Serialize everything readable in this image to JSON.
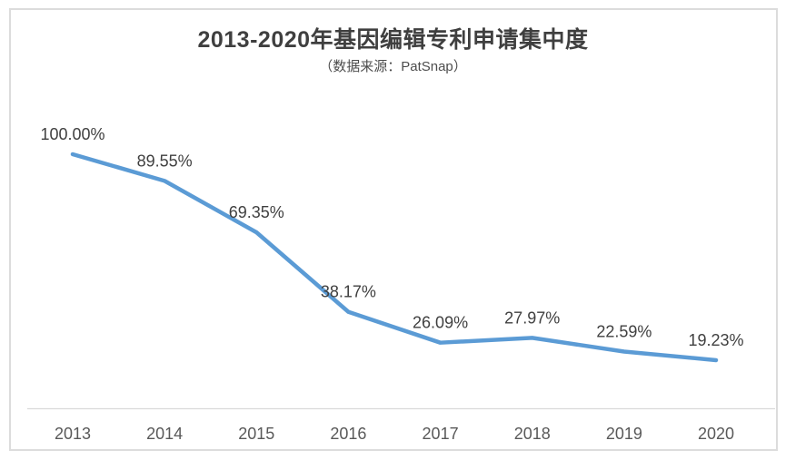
{
  "chart_data": {
    "type": "line",
    "title": "2013-2020年基因编辑专利申请集中度",
    "subtitle": "（数据来源：PatSnap）",
    "categories": [
      "2013",
      "2014",
      "2015",
      "2016",
      "2017",
      "2018",
      "2019",
      "2020"
    ],
    "values": [
      100.0,
      89.55,
      69.35,
      38.17,
      26.09,
      27.97,
      22.59,
      19.23
    ],
    "labels": [
      "100.00%",
      "89.55%",
      "69.35%",
      "38.17%",
      "26.09%",
      "27.97%",
      "22.59%",
      "19.23%"
    ],
    "xlabel": "",
    "ylabel": "",
    "ylim": [
      0,
      100
    ],
    "grid": false,
    "legend": "none",
    "line_color": "#5b9bd5",
    "label_color": "#404040",
    "tick_color": "#595959",
    "axis_line_color": "#d9d9d9",
    "border_color": "#dcdcdc",
    "background_color": "#ffffff"
  }
}
